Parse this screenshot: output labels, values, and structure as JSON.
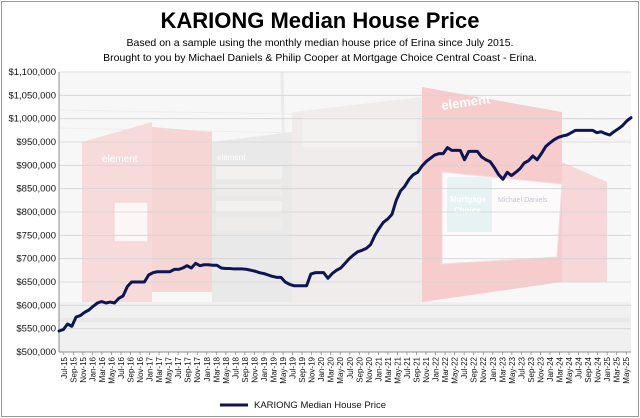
{
  "chart_data": {
    "type": "line",
    "title": "KARIONG Median House Price",
    "subtitle_lines": [
      "Based on a sample using the monthly median house price of Erina since July 2015.",
      "Brought to you by Michael Daniels & Philip Cooper at Mortgage Choice Central Coast - Erina."
    ],
    "xlabel": "",
    "ylabel": "",
    "ylim": [
      500000,
      1100000
    ],
    "y_ticks": [
      500000,
      550000,
      600000,
      650000,
      700000,
      750000,
      800000,
      850000,
      900000,
      950000,
      1000000,
      1050000,
      1100000
    ],
    "y_tick_labels": [
      "$500,000",
      "$550,000",
      "$600,000",
      "$650,000",
      "$700,000",
      "$750,000",
      "$800,000",
      "$850,000",
      "$900,000",
      "$950,000",
      "$1,000,000",
      "$1,050,000",
      "$1,100,000"
    ],
    "x_tick_labels": [
      "Jul-15",
      "Sep-15",
      "Nov-15",
      "Jan-16",
      "Mar-16",
      "May-16",
      "Jul-16",
      "Sep-16",
      "Nov-16",
      "Jan-17",
      "Mar-17",
      "May-17",
      "Jul-17",
      "Sep-17",
      "Nov-17",
      "Jan-18",
      "Mar-18",
      "May-18",
      "Jul-18",
      "Sep-18",
      "Nov-18",
      "Jan-19",
      "Mar-19",
      "May-19",
      "Jul-19",
      "Sep-19",
      "Nov-19",
      "Jan-20",
      "Mar-20",
      "May-20",
      "Jul-20",
      "Sep-20",
      "Nov-20",
      "Jan-21",
      "Mar-21",
      "May-21",
      "Jul-21",
      "Sep-21",
      "Nov-21",
      "Jan-22",
      "Mar-22",
      "May-22",
      "Jul-22",
      "Sep-22",
      "Nov-22",
      "Jan-23",
      "Mar-23",
      "May-23",
      "Jul-23",
      "Sep-23",
      "Nov-23",
      "Jan-24",
      "Mar-24",
      "May-24",
      "Jul-24",
      "Sep-24",
      "Nov-24",
      "Jan-25",
      "Mar-25",
      "May-25"
    ],
    "grid": true,
    "legend_position": "bottom-center",
    "series": [
      {
        "name": "KARIONG Median House Price",
        "color": "#0d1652",
        "values": [
          545000,
          548000,
          560000,
          555000,
          575000,
          578000,
          585000,
          590000,
          598000,
          605000,
          608000,
          605000,
          607000,
          605000,
          615000,
          620000,
          640000,
          650000,
          650000,
          650000,
          650000,
          665000,
          670000,
          672000,
          672000,
          672000,
          672000,
          677000,
          677000,
          680000,
          685000,
          680000,
          690000,
          685000,
          687000,
          687000,
          686000,
          686000,
          680000,
          679000,
          679000,
          678000,
          678000,
          678000,
          677000,
          675000,
          673000,
          670000,
          668000,
          665000,
          662000,
          660000,
          660000,
          650000,
          645000,
          642000,
          642000,
          642000,
          642000,
          667000,
          670000,
          670000,
          670000,
          658000,
          668000,
          675000,
          680000,
          690000,
          700000,
          708000,
          715000,
          718000,
          722000,
          730000,
          750000,
          765000,
          778000,
          785000,
          795000,
          825000,
          845000,
          855000,
          870000,
          880000,
          885000,
          898000,
          908000,
          915000,
          922000,
          925000,
          925000,
          938000,
          932000,
          932000,
          932000,
          912000,
          930000,
          930000,
          930000,
          918000,
          912000,
          908000,
          895000,
          880000,
          870000,
          885000,
          878000,
          885000,
          893000,
          905000,
          910000,
          920000,
          912000,
          925000,
          940000,
          948000,
          955000,
          960000,
          963000,
          965000,
          970000,
          975000,
          975000,
          975000,
          975000,
          975000,
          970000,
          972000,
          968000,
          965000,
          972000,
          978000,
          985000,
          995000,
          1002000
        ]
      }
    ]
  },
  "colors": {
    "line": "#0d1652",
    "grid": "#d4d4d4",
    "axis": "#8c8c8c",
    "building_red": "#f0a9a9",
    "building_grey": "#c9c9c9",
    "sky": "#f4f4f4"
  },
  "background_photo": {
    "sign_text_left": "element",
    "sign_text_right": "element",
    "sign_text_center": "element",
    "billboard_text_1": "Mortgage",
    "billboard_text_2": "Choice",
    "billboard_text_3": "Michael Daniels"
  }
}
